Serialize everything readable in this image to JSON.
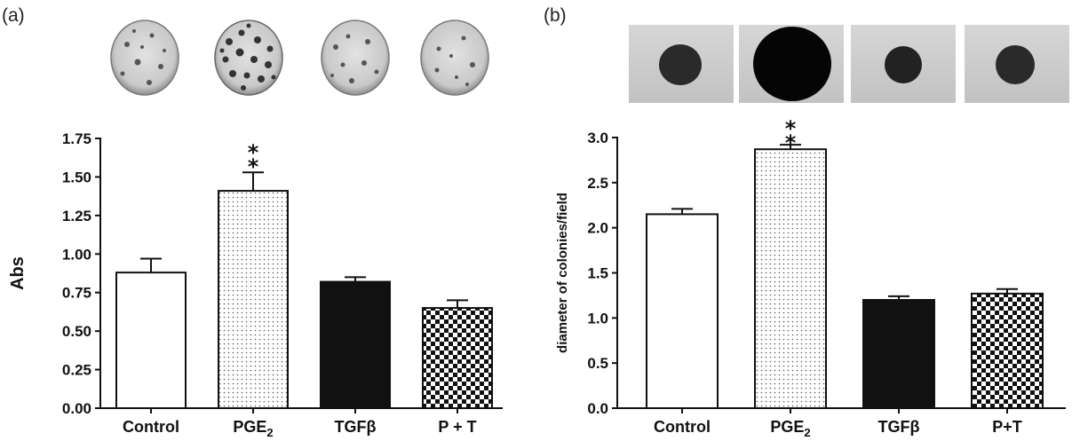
{
  "panels": [
    {
      "label": "(a)",
      "image_kind": "plates",
      "chart_data": {
        "type": "bar",
        "categories": [
          {
            "text": "Control",
            "sub": ""
          },
          {
            "text": "PGE",
            "sub": "2"
          },
          {
            "text": "TGFβ",
            "sub": ""
          },
          {
            "text": "P + T",
            "sub": ""
          }
        ],
        "values": [
          0.88,
          1.41,
          0.82,
          0.65
        ],
        "errors": [
          0.09,
          0.12,
          0.03,
          0.05
        ],
        "patterns": [
          "white",
          "dots",
          "black",
          "checker"
        ],
        "significance": [
          "",
          "**",
          "",
          ""
        ],
        "title": "",
        "xlabel": "",
        "ylabel": "Abs",
        "ylim": [
          0,
          1.75
        ],
        "yticks": [
          "0.00",
          "0.25",
          "0.50",
          "0.75",
          "1.00",
          "1.25",
          "1.50",
          "1.75"
        ],
        "grid": false
      }
    },
    {
      "label": "(b)",
      "image_kind": "colonies",
      "chart_data": {
        "type": "bar",
        "categories": [
          {
            "text": "Control",
            "sub": ""
          },
          {
            "text": "PGE",
            "sub": "2"
          },
          {
            "text": "TGFβ",
            "sub": ""
          },
          {
            "text": "P+T",
            "sub": ""
          }
        ],
        "values": [
          2.15,
          2.87,
          1.2,
          1.27
        ],
        "errors": [
          0.06,
          0.05,
          0.04,
          0.05
        ],
        "patterns": [
          "white",
          "dots",
          "black",
          "checker"
        ],
        "significance": [
          "",
          "**",
          "",
          ""
        ],
        "title": "",
        "xlabel": "",
        "ylabel": "diameter of colonies/field",
        "ylim": [
          0,
          3.0
        ],
        "yticks": [
          "0.0",
          "0.5",
          "1.0",
          "1.5",
          "2.0",
          "2.5",
          "3.0"
        ],
        "grid": false
      }
    }
  ]
}
